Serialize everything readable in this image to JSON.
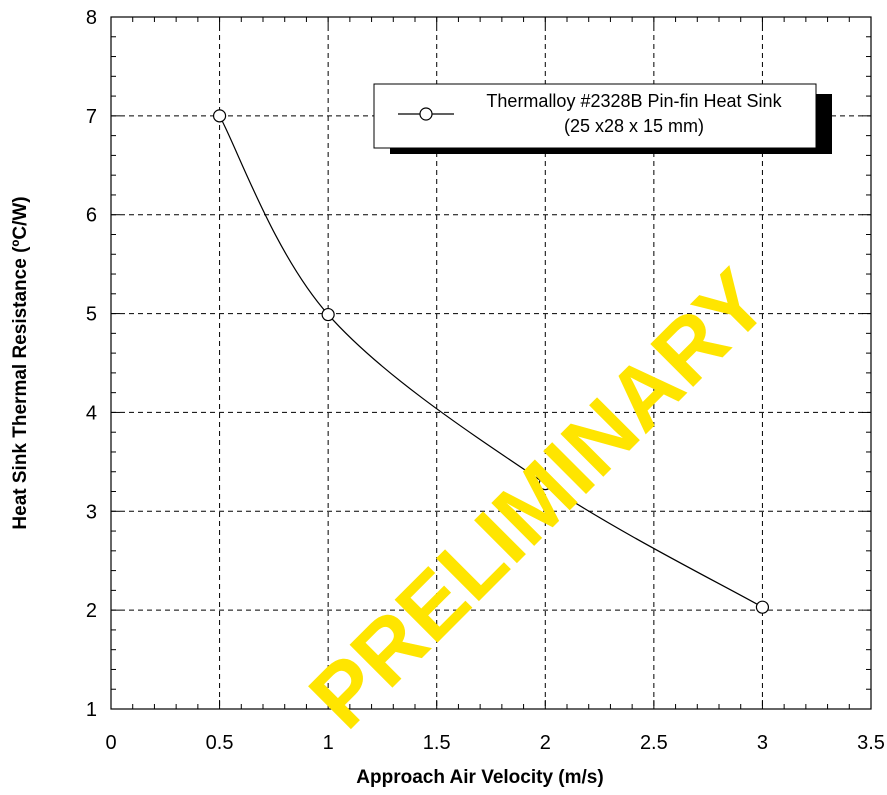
{
  "colors": {
    "watermark": "#ffe500",
    "line": "#000000",
    "grid": "#000000",
    "background": "#ffffff"
  },
  "watermark_text": "PRELIMINARY",
  "chart_data": {
    "type": "line",
    "title": "",
    "xlabel": "Approach Air Velocity (m/s)",
    "ylabel": "Heat Sink Thermal Resistance (ºC/W)",
    "xlim": [
      0,
      3.5
    ],
    "ylim": [
      1,
      8
    ],
    "xticks": [
      "0",
      "0.5",
      "1",
      "1.5",
      "2",
      "2.5",
      "3",
      "3.5"
    ],
    "yticks": [
      "1",
      "2",
      "3",
      "4",
      "5",
      "6",
      "7",
      "8"
    ],
    "grid": true,
    "legend_position": "top-right",
    "legend_lines": [
      "Thermalloy #2328B Pin-fin Heat Sink",
      "(25 x28 x 15 mm)"
    ],
    "series": [
      {
        "name": "Thermalloy #2328B Pin-fin Heat Sink (25 x28 x 15 mm)",
        "marker": "circle",
        "x": [
          0.5,
          1,
          2,
          3
        ],
        "y": [
          7.0,
          4.99,
          3.28,
          2.03
        ]
      }
    ]
  }
}
